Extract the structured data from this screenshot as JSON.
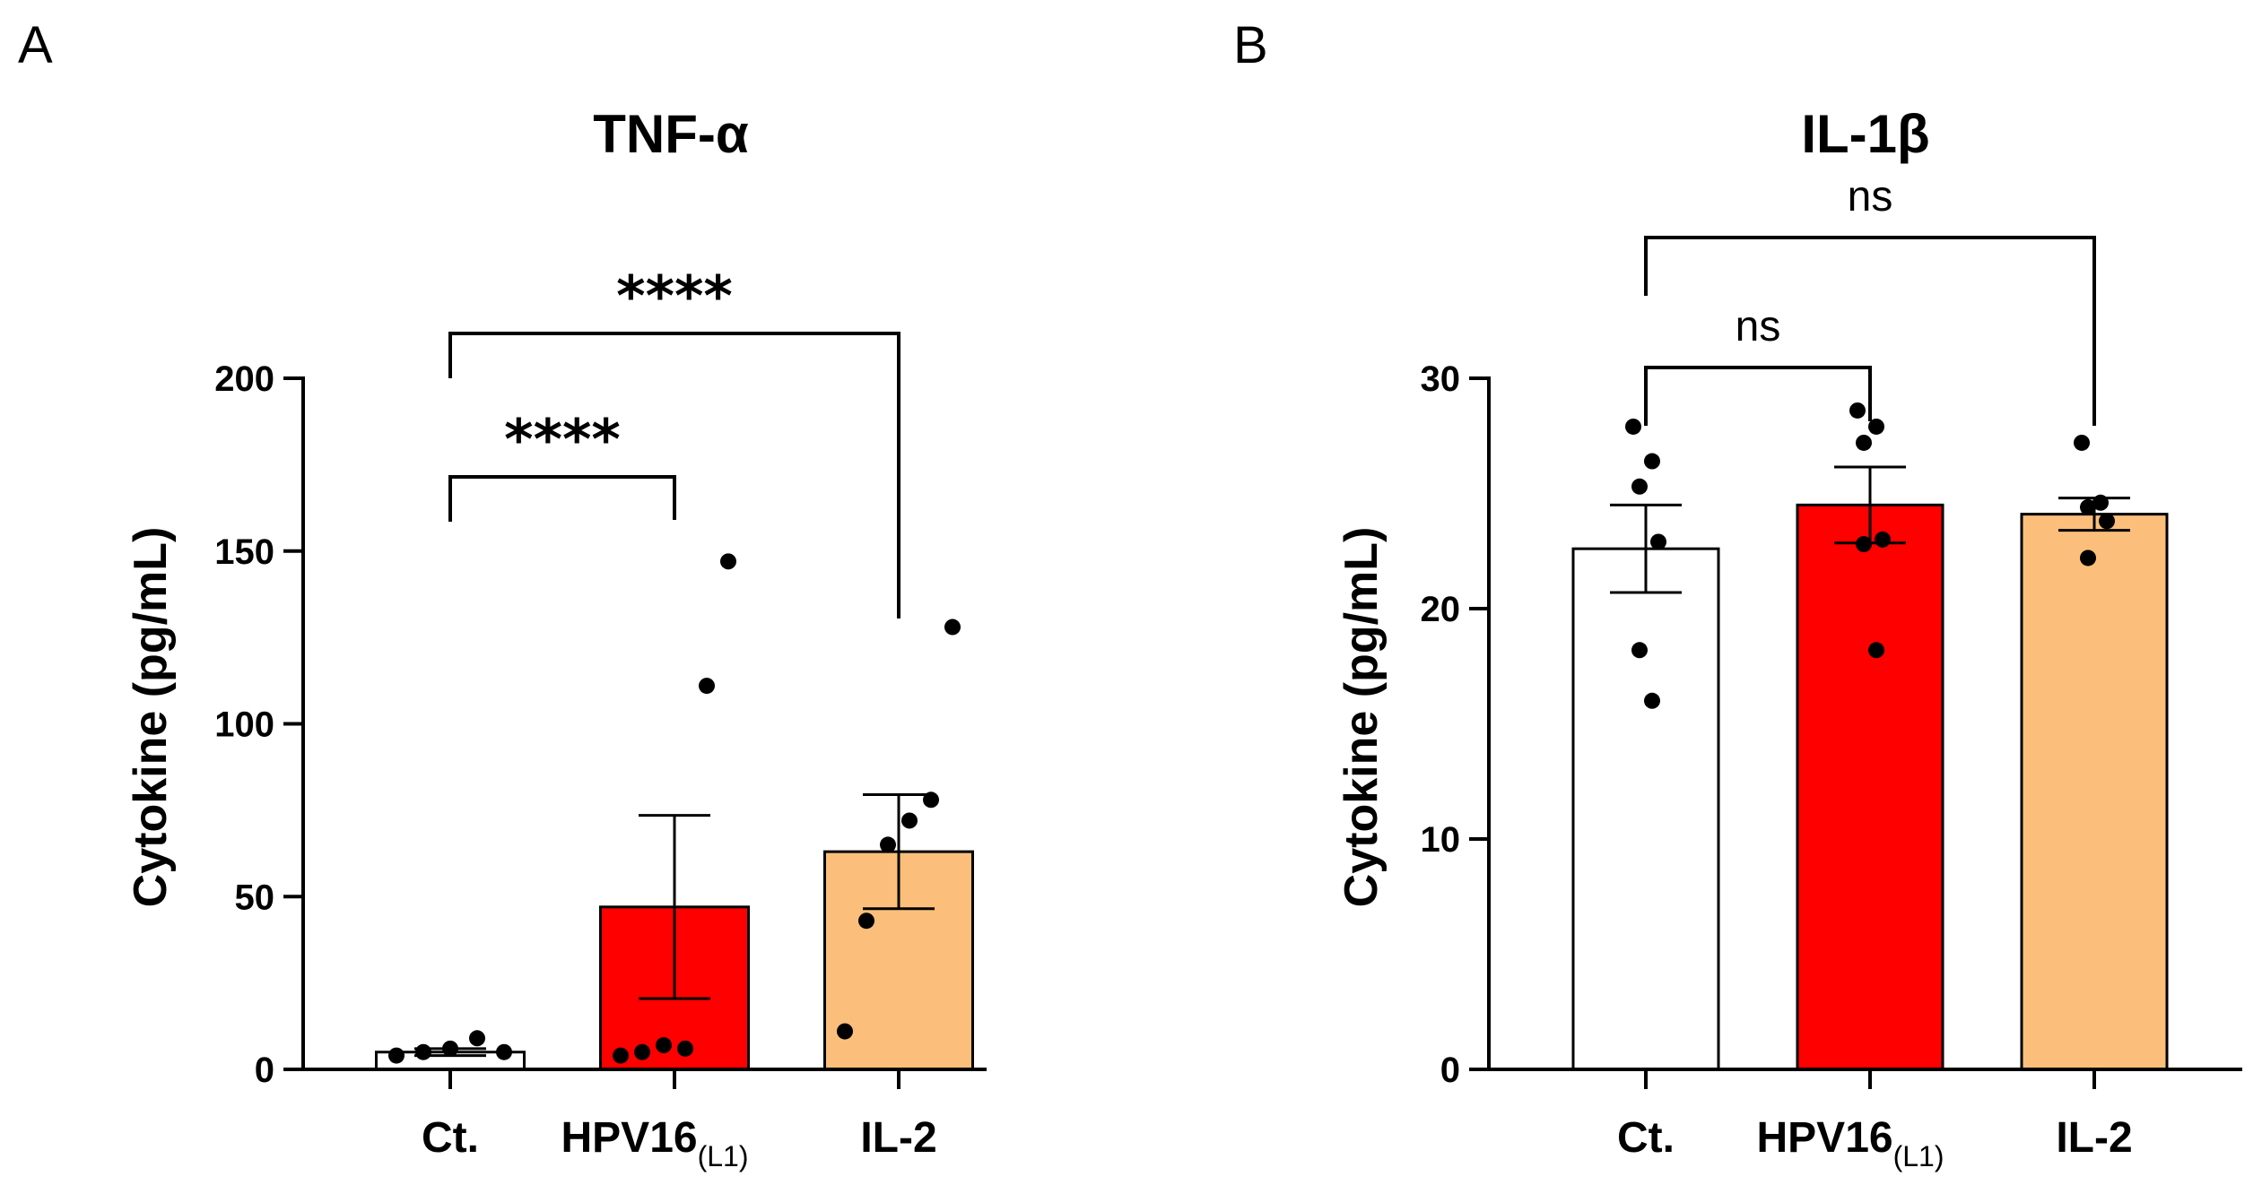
{
  "panels": [
    {
      "letter": "A",
      "title": "TNF-α",
      "ylabel": "Cytokine (pg/mL)",
      "yticks": [
        "0",
        "50",
        "100",
        "150",
        "200"
      ]
    },
    {
      "letter": "B",
      "title": "IL-1β",
      "ylabel": "Cytokine (pg/mL)",
      "yticks": [
        "0",
        "10",
        "20",
        "30"
      ]
    }
  ],
  "categories": [
    {
      "main": "Ct.",
      "sub": ""
    },
    {
      "main": "HPV16",
      "sub": "(L1)"
    },
    {
      "main": "IL-2",
      "sub": ""
    }
  ],
  "colors": {
    "Ct.": "#ffffff",
    "HPV16": "#ff0000",
    "IL-2": "#fbbf7b",
    "outline": "#000000"
  },
  "chart_data": [
    {
      "type": "bar",
      "title": "TNF-α",
      "xlabel": "",
      "ylabel": "Cytokine (pg/mL)",
      "ylim": [
        0,
        200
      ],
      "yticks": [
        0,
        50,
        100,
        150,
        200
      ],
      "categories": [
        "Ct.",
        "HPV16(L1)",
        "IL-2"
      ],
      "values": [
        5,
        47,
        63
      ],
      "sem": [
        1,
        26.5,
        16.5
      ],
      "points": [
        [
          4,
          5,
          6,
          9,
          5
        ],
        [
          4,
          5,
          7,
          6,
          111,
          147
        ],
        [
          11,
          43,
          65,
          72,
          78,
          128
        ]
      ],
      "significance": [
        {
          "pair": [
            0,
            1
          ],
          "label": "****"
        },
        {
          "pair": [
            0,
            2
          ],
          "label": "****"
        }
      ]
    },
    {
      "type": "bar",
      "title": "IL-1β",
      "xlabel": "",
      "ylabel": "Cytokine (pg/mL)",
      "ylim": [
        0,
        30
      ],
      "yticks": [
        0,
        10,
        20,
        30
      ],
      "categories": [
        "Ct.",
        "HPV16(L1)",
        "IL-2"
      ],
      "values": [
        22.6,
        24.5,
        24.1
      ],
      "sem": [
        1.9,
        1.65,
        0.7
      ],
      "points": [
        [
          27.9,
          26.4,
          25.3,
          22.9,
          18.2,
          16.0
        ],
        [
          28.6,
          27.9,
          27.2,
          23.0,
          22.8,
          18.2
        ],
        [
          27.2,
          24.6,
          24.4,
          23.8,
          22.2
        ]
      ],
      "significance": [
        {
          "pair": [
            0,
            1
          ],
          "label": "ns"
        },
        {
          "pair": [
            0,
            2
          ],
          "label": "ns"
        }
      ]
    }
  ]
}
